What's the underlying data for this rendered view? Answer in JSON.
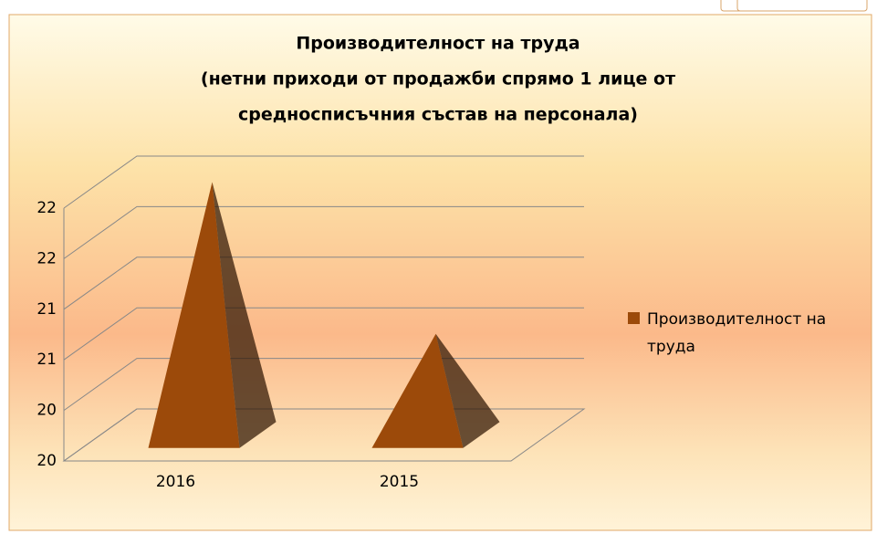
{
  "chart_data": {
    "type": "pyramid",
    "title": "Производителност на труда",
    "subtitle": [
      "(нетни приходи от продажби спрямо 1 лице от",
      "средносписъчния състав на персонала)"
    ],
    "categories": [
      "2016",
      "2015"
    ],
    "series": [
      {
        "name": "Производителност на труда",
        "color": "#9c4a0a",
        "values": [
          22.0,
          20.8
        ]
      }
    ],
    "ylim": [
      20,
      22
    ],
    "yticks": [
      20,
      {
        "value": 20.4,
        "label": "20"
      },
      {
        "value": 20.8,
        "label": "21"
      },
      {
        "value": 21.2,
        "label": "21"
      },
      {
        "value": 21.6,
        "label": "22"
      },
      22
    ],
    "grid": true,
    "legend": "right"
  }
}
